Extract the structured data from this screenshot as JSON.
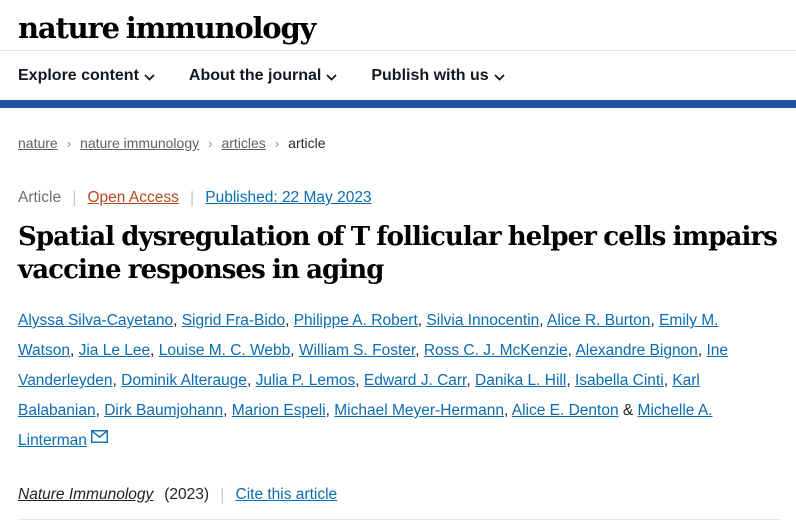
{
  "header": {
    "logo": "nature immunology",
    "nav": [
      {
        "label": "Explore content"
      },
      {
        "label": "About the journal"
      },
      {
        "label": "Publish with us"
      }
    ]
  },
  "breadcrumb": {
    "items": [
      {
        "label": "nature",
        "link": true
      },
      {
        "label": "nature immunology",
        "link": true
      },
      {
        "label": "articles",
        "link": true
      },
      {
        "label": "article",
        "link": false
      }
    ],
    "separator": "›"
  },
  "article_meta": {
    "type": "Article",
    "access": "Open Access",
    "published": "Published: 22 May 2023",
    "divider": "|"
  },
  "title": "Spatial dysregulation of T follicular helper cells impairs vaccine responses in aging",
  "authors": {
    "names": [
      "Alyssa Silva-Cayetano",
      "Sigrid Fra-Bido",
      "Philippe A. Robert",
      "Silvia Innocentin",
      "Alice R. Burton",
      "Emily M. Watson",
      "Jia Le Lee",
      "Louise M. C. Webb",
      "William S. Foster",
      "Ross C. J. McKenzie",
      "Alexandre Bignon",
      "Ine Vanderleyden",
      "Dominik Alterauge",
      "Julia P. Lemos",
      "Edward J. Carr",
      "Danika L. Hill",
      "Isabella Cinti",
      "Karl Balabanian",
      "Dirk Baumjohann",
      "Marion Espeli",
      "Michael Meyer-Hermann",
      "Alice E. Denton",
      "Michelle A. Linterman"
    ],
    "separator": ", ",
    "last_separator": " & ",
    "corresponding_author_icon": "envelope-icon"
  },
  "citation": {
    "journal": "Nature Immunology",
    "year": "(2023)",
    "divider": "|",
    "cite_label": "Cite this article"
  },
  "colors": {
    "brand_bar": "#1f549e",
    "link_blue": "#0b6cb1",
    "open_access_orange": "#b6471e",
    "breadcrumb_gray": "#616161",
    "logo_black": "#000000"
  }
}
